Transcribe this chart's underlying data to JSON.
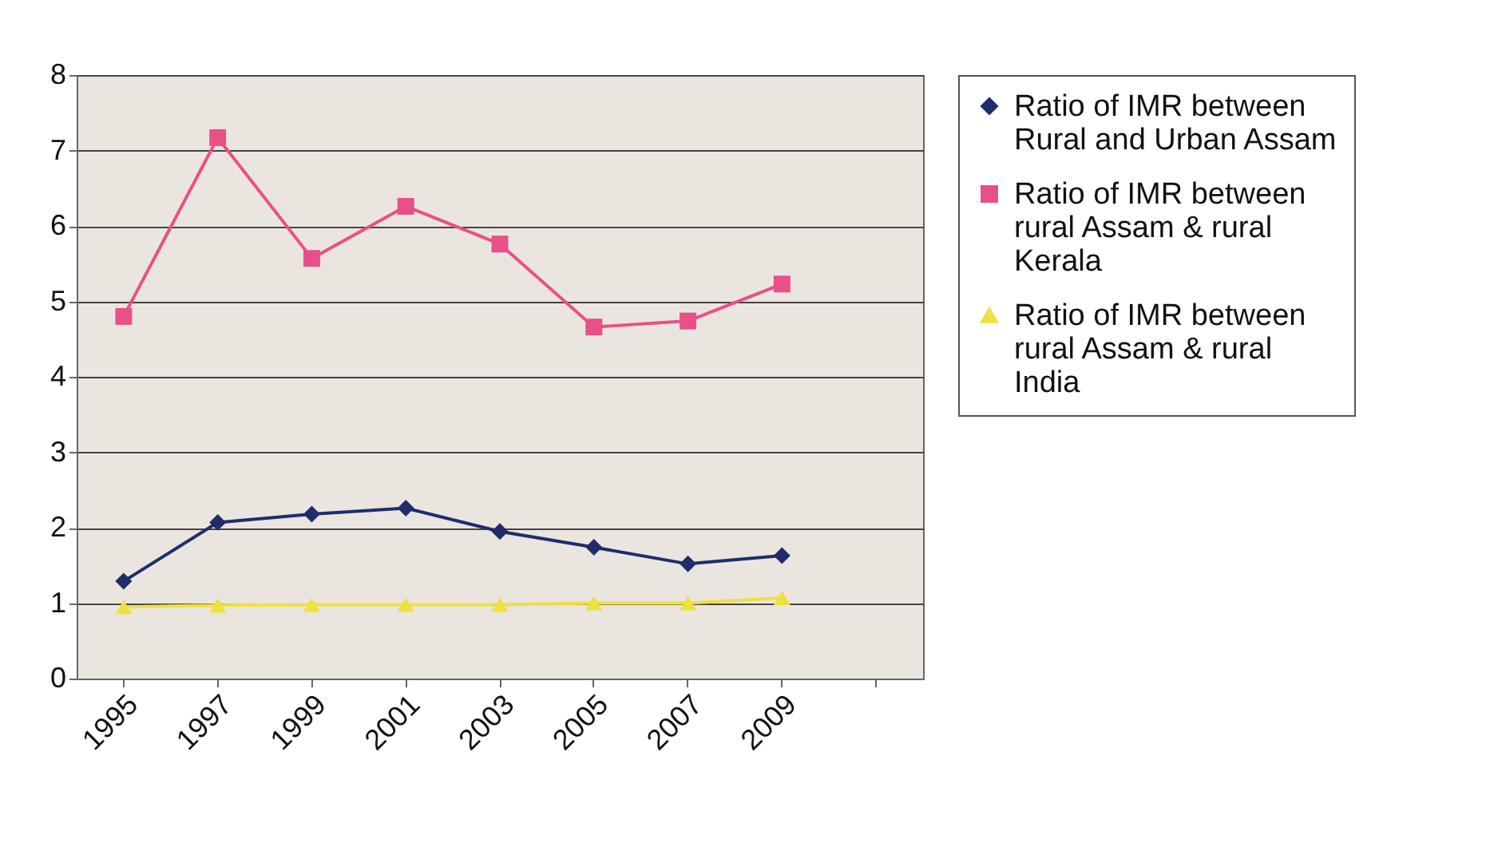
{
  "chart_data": {
    "type": "line",
    "categories": [
      "1995",
      "1997",
      "1999",
      "2001",
      "2003",
      "2005",
      "2007",
      "2009",
      null
    ],
    "series": [
      {
        "name": "Ratio of IMR between Rural and Urban Assam",
        "color": "#1f2d6b",
        "marker": "diamond",
        "values": [
          1.29,
          2.07,
          2.18,
          2.26,
          1.95,
          1.74,
          1.52,
          1.63,
          null
        ]
      },
      {
        "name": "Ratio of IMR between rural Assam & rural Kerala",
        "color": "#e8508a",
        "marker": "square",
        "values": [
          4.8,
          7.17,
          5.57,
          6.26,
          5.76,
          4.66,
          4.74,
          5.23,
          null
        ]
      },
      {
        "name": "Ratio of IMR between rural Assam & rural India",
        "color": "#f0e040",
        "marker": "triangle",
        "values": [
          0.95,
          0.97,
          0.98,
          0.98,
          0.98,
          1.0,
          1.0,
          1.07,
          null
        ]
      }
    ],
    "ylim": [
      0,
      8
    ],
    "yticks": [
      0,
      1,
      2,
      3,
      4,
      5,
      6,
      7,
      8
    ],
    "grid": "y",
    "legend": "right",
    "line_style": "solid"
  }
}
